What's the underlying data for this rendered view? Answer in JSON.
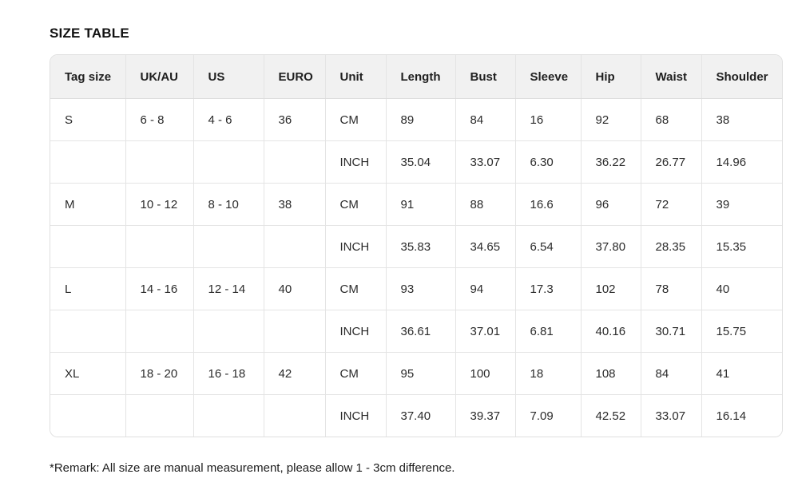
{
  "page": {
    "title": "SIZE TABLE",
    "remark": "*Remark: All size are manual measurement, please allow 1 - 3cm difference."
  },
  "colors": {
    "header_bg": "#f1f1f1",
    "border": "#e4e4e4",
    "title_text": "#111111",
    "body_text": "#2b2b2b"
  },
  "table": {
    "columns": [
      "Tag size",
      "UK/AU",
      "US",
      "EURO",
      "Unit",
      "Length",
      "Bust",
      "Sleeve",
      "Hip",
      "Waist",
      "Shoulder"
    ],
    "rows": [
      [
        "S",
        "6 - 8",
        "4 - 6",
        "36",
        "CM",
        "89",
        "84",
        "16",
        "92",
        "68",
        "38"
      ],
      [
        "",
        "",
        "",
        "",
        "INCH",
        "35.04",
        "33.07",
        "6.30",
        "36.22",
        "26.77",
        "14.96"
      ],
      [
        "M",
        "10 - 12",
        "8 - 10",
        "38",
        "CM",
        "91",
        "88",
        "16.6",
        "96",
        "72",
        "39"
      ],
      [
        "",
        "",
        "",
        "",
        "INCH",
        "35.83",
        "34.65",
        "6.54",
        "37.80",
        "28.35",
        "15.35"
      ],
      [
        "L",
        "14 - 16",
        "12 - 14",
        "40",
        "CM",
        "93",
        "94",
        "17.3",
        "102",
        "78",
        "40"
      ],
      [
        "",
        "",
        "",
        "",
        "INCH",
        "36.61",
        "37.01",
        "6.81",
        "40.16",
        "30.71",
        "15.75"
      ],
      [
        "XL",
        "18 - 20",
        "16 - 18",
        "42",
        "CM",
        "95",
        "100",
        "18",
        "108",
        "84",
        "41"
      ],
      [
        "",
        "",
        "",
        "",
        "INCH",
        "37.40",
        "39.37",
        "7.09",
        "42.52",
        "33.07",
        "16.14"
      ]
    ]
  }
}
